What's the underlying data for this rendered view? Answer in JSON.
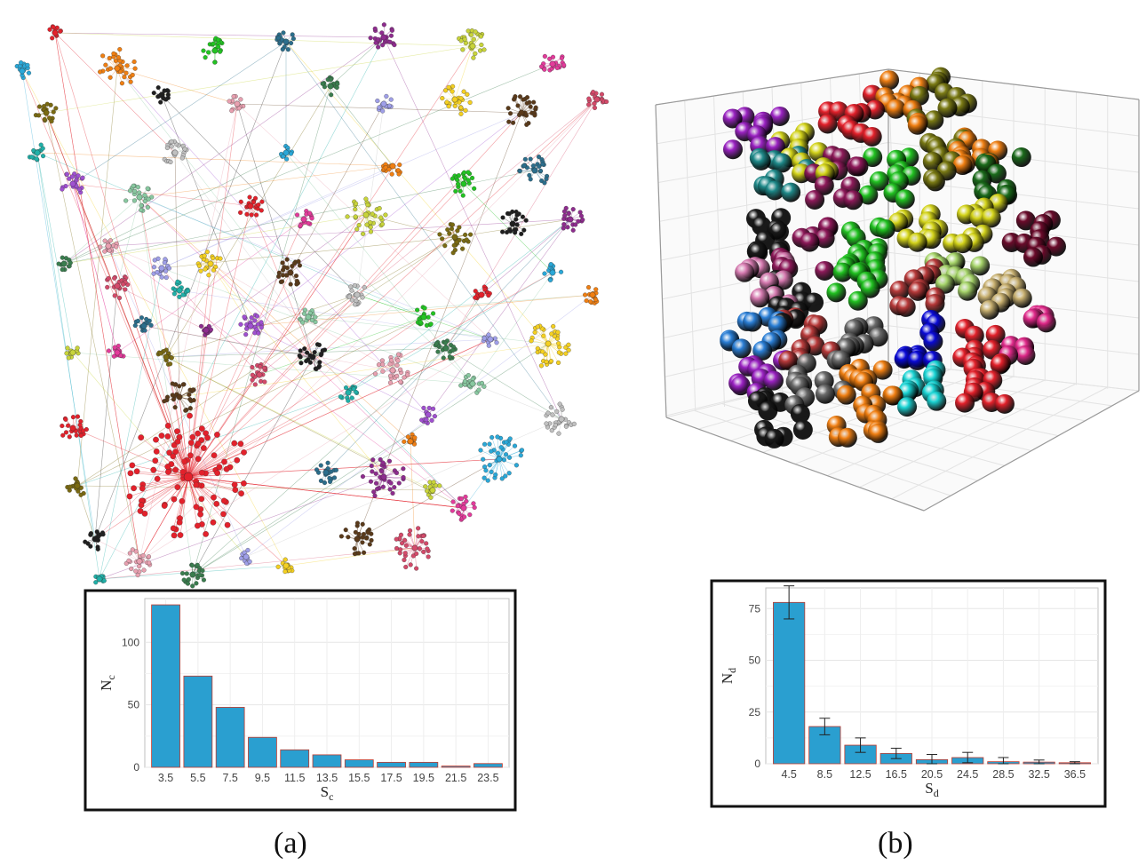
{
  "figure": {
    "caption_a": "(a)",
    "caption_b": "(b)"
  },
  "palette": [
    "#e3212b",
    "#2aa8d8",
    "#f07f12",
    "#22c422",
    "#2b6e8c",
    "#8e2c8e",
    "#c8d43a",
    "#e33b9b",
    "#7a6a12",
    "#1f1f1f",
    "#e8a0b0",
    "#3a7d4e",
    "#9f9fe8",
    "#f4d021",
    "#5a3a1a",
    "#d44a6a",
    "#20b0a8",
    "#a050d0",
    "#88c8a0",
    "#c0c0c0"
  ],
  "chart_data": [
    {
      "type": "bar",
      "title": "",
      "xlabel": "S",
      "xlabel_sub": "c",
      "ylabel": "N",
      "ylabel_sub": "c",
      "categories": [
        "3.5",
        "5.5",
        "7.5",
        "9.5",
        "11.5",
        "13.5",
        "15.5",
        "17.5",
        "19.5",
        "21.5",
        "23.5"
      ],
      "values": [
        130,
        73,
        48,
        24,
        14,
        10,
        6,
        4,
        4,
        1,
        3
      ],
      "ylim": [
        0,
        135
      ],
      "yticks": [
        "0",
        "50",
        "100"
      ],
      "grid": true,
      "bar_color": "#2a9fd0",
      "bar_outline": "#c0392b"
    },
    {
      "type": "bar",
      "title": "",
      "xlabel": "S",
      "xlabel_sub": "d",
      "ylabel": "N",
      "ylabel_sub": "d",
      "categories": [
        "4.5",
        "8.5",
        "12.5",
        "16.5",
        "20.5",
        "24.5",
        "28.5",
        "32.5",
        "36.5"
      ],
      "values": [
        78,
        18,
        9,
        5,
        2,
        3,
        1,
        0.8,
        0.5
      ],
      "errors": [
        8,
        4,
        3.5,
        2.5,
        2.5,
        2.5,
        2,
        1,
        0.5
      ],
      "ylim": [
        0,
        85
      ],
      "yticks": [
        "0",
        "25",
        "50",
        "75"
      ],
      "grid": true,
      "bar_color": "#2a9fd0",
      "bar_outline": "#c0392b"
    }
  ]
}
